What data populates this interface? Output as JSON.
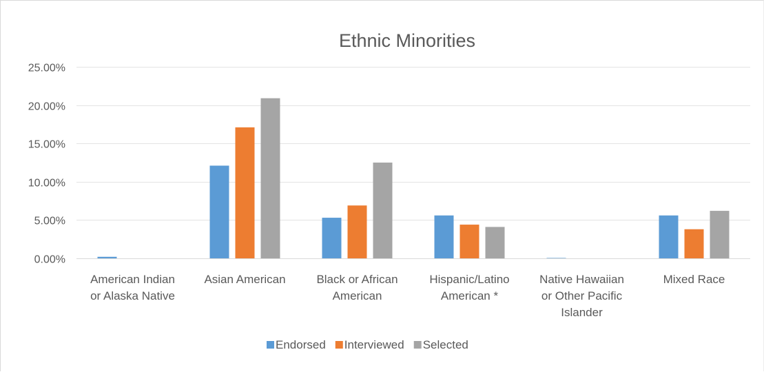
{
  "chart_data": {
    "type": "bar",
    "title": "Ethnic Minorities",
    "xlabel": "",
    "ylabel": "",
    "ylim": [
      0,
      0.25
    ],
    "yticks": [
      "0.00%",
      "5.00%",
      "10.00%",
      "15.00%",
      "20.00%",
      "25.00%"
    ],
    "grid": true,
    "legend_position": "bottom",
    "categories": [
      [
        "American Indian",
        "or Alaska Native"
      ],
      [
        "Asian American"
      ],
      [
        "Black or African",
        "American"
      ],
      [
        "Hispanic/Latino",
        "American *"
      ],
      [
        "Native Hawaiian",
        "or Other Pacific",
        "Islander"
      ],
      [
        "Mixed Race"
      ]
    ],
    "series": [
      {
        "name": "Endorsed",
        "color": "#5b9bd5",
        "values": [
          0.002,
          0.121,
          0.053,
          0.056,
          0.0005,
          0.056
        ]
      },
      {
        "name": "Interviewed",
        "color": "#ed7d31",
        "values": [
          0.0,
          0.171,
          0.069,
          0.044,
          0.0,
          0.038
        ]
      },
      {
        "name": "Selected",
        "color": "#a5a5a5",
        "values": [
          0.0,
          0.209,
          0.125,
          0.041,
          0.0,
          0.062
        ]
      }
    ]
  }
}
